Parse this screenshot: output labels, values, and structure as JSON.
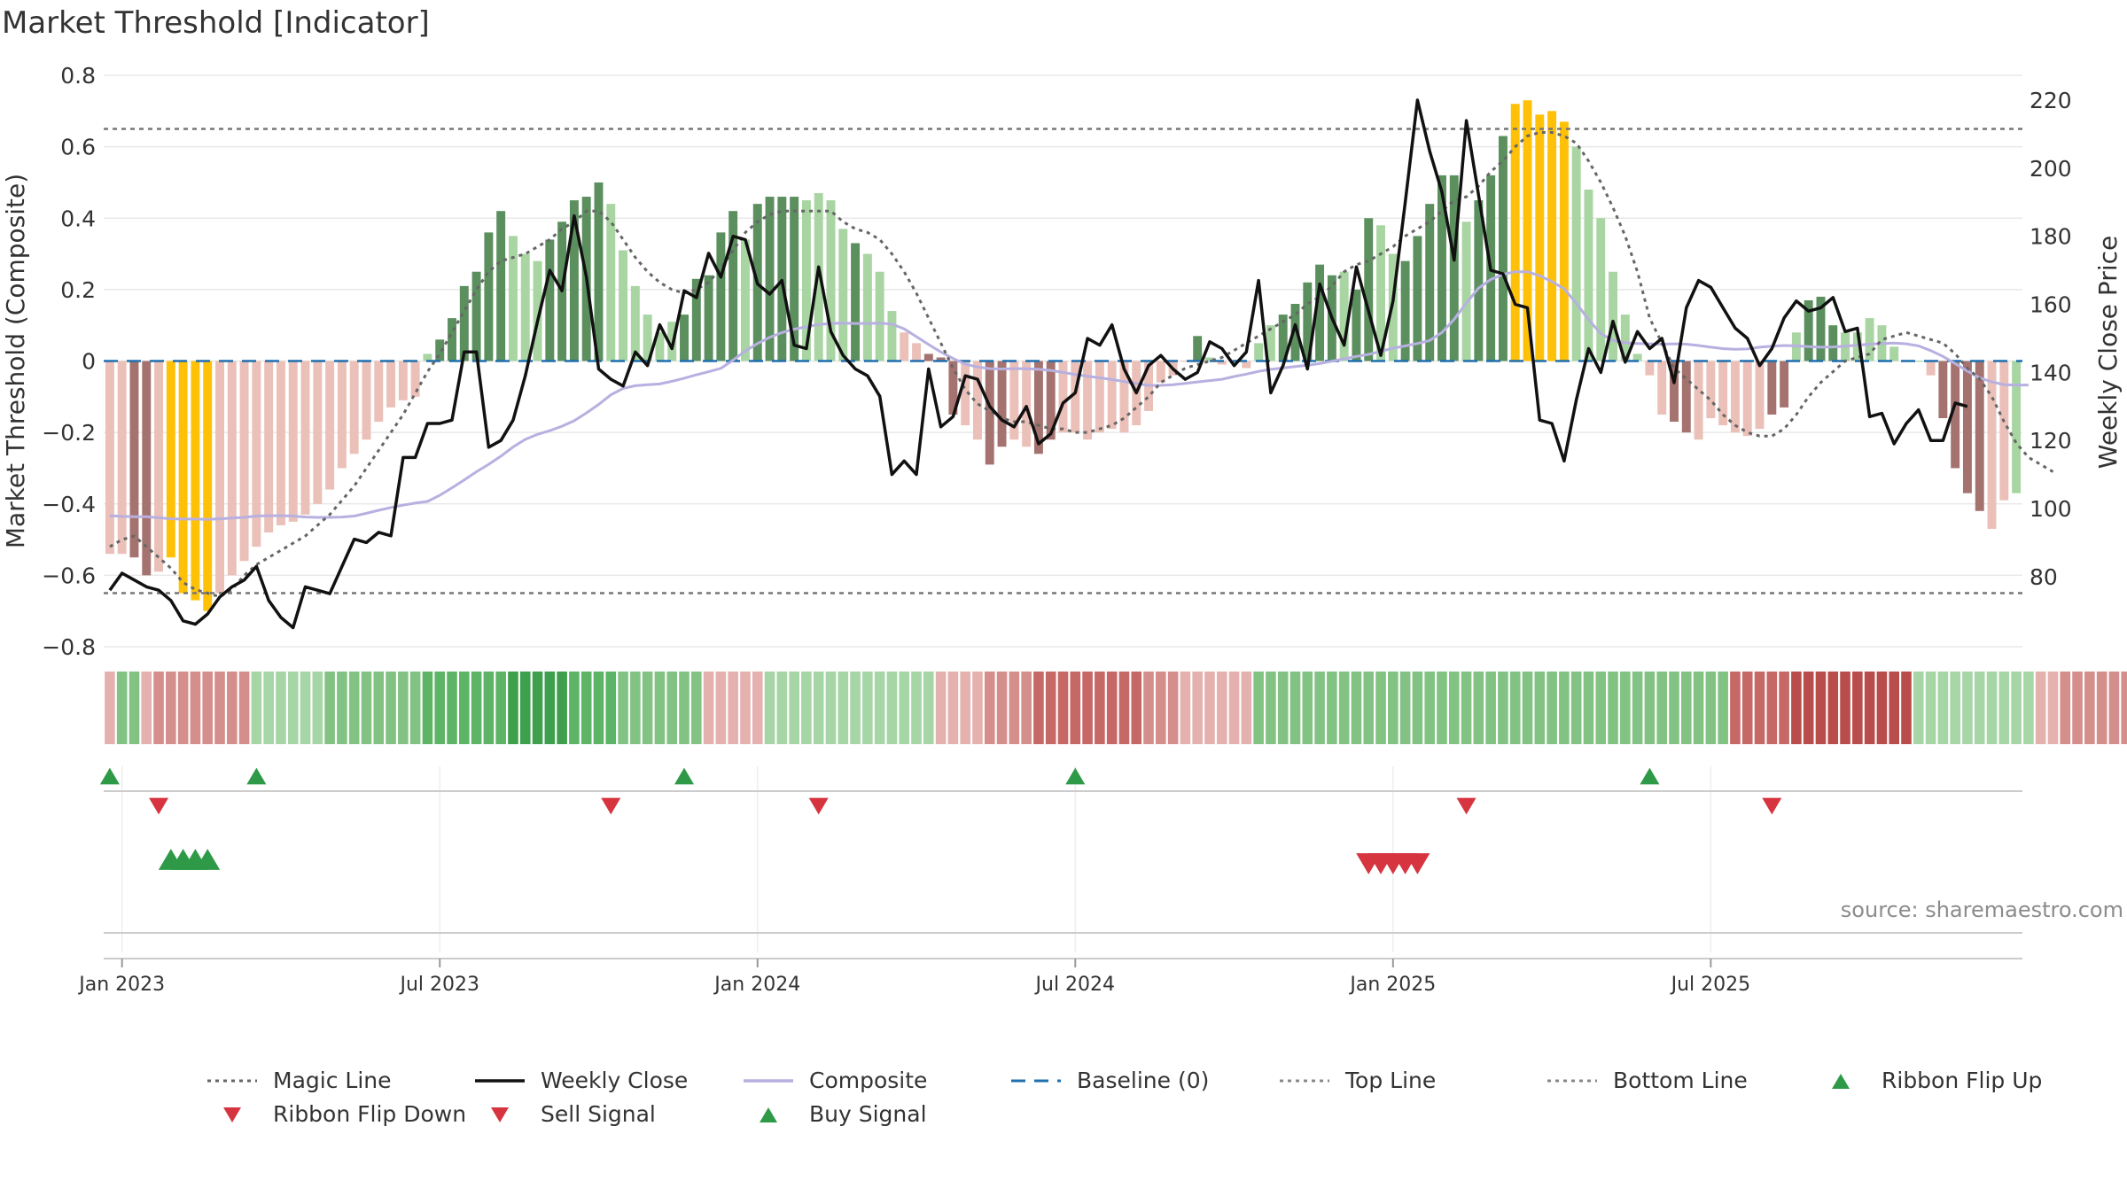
{
  "title": "Market Threshold [Indicator]",
  "source_note": "source: sharemaestro.com",
  "colors": {
    "bar_strong_pos": "#5b8f5e",
    "bar_weak_pos": "#a8d5a2",
    "bar_strong_neg": "#a5736f",
    "bar_weak_neg": "#ebc0b8",
    "bar_extreme": "#ffc107",
    "magic_line": "#666666",
    "weekly_close": "#111111",
    "composite": "#b7b0e0",
    "baseline": "#1f6fae",
    "threshold": "#777777",
    "buy": "#2e9a47",
    "sell": "#d6343f"
  },
  "legend": [
    {
      "label": "Magic Line",
      "kind": "dotted",
      "color": "#666666"
    },
    {
      "label": "Weekly Close",
      "kind": "solid",
      "color": "#111111"
    },
    {
      "label": "Composite",
      "kind": "solid",
      "color": "#b7b0e0"
    },
    {
      "label": "Baseline (0)",
      "kind": "dashed",
      "color": "#1f6fae"
    },
    {
      "label": "Top Line",
      "kind": "dotted",
      "color": "#888888"
    },
    {
      "label": "Bottom Line",
      "kind": "dotted",
      "color": "#888888"
    },
    {
      "label": "Ribbon Flip Up",
      "kind": "tri-up",
      "color": "#2e9a47"
    },
    {
      "label": "Ribbon Flip Down",
      "kind": "tri-down",
      "color": "#d6343f"
    },
    {
      "label": "Sell Signal",
      "kind": "tri-down",
      "color": "#d6343f"
    },
    {
      "label": "Buy Signal",
      "kind": "tri-up",
      "color": "#2e9a47"
    }
  ],
  "chart_data": {
    "type": "bar",
    "ylabel": "Market Threshold (Composite)",
    "y2label": "Weekly Close Price",
    "ylim": [
      -0.8,
      0.8
    ],
    "y2lim": [
      59.4,
      227.3
    ],
    "yticks": [
      "0.8",
      "0.6",
      "0.4",
      "0.2",
      "0",
      "−0.2",
      "−0.4",
      "−0.6",
      "−0.8"
    ],
    "yticks_values": [
      0.8,
      0.6,
      0.4,
      0.2,
      0,
      -0.2,
      -0.4,
      -0.6,
      -0.8
    ],
    "y2ticks": [
      "220",
      "200",
      "180",
      "160",
      "140",
      "120",
      "100",
      "80"
    ],
    "y2ticks_values": [
      220,
      200,
      180,
      160,
      140,
      120,
      100,
      80
    ],
    "xticks": [
      "Jan 2023",
      "Jul 2023",
      "Jan 2024",
      "Jul 2024",
      "Jan 2025",
      "Jul 2025"
    ],
    "xticks_week": [
      1,
      27,
      53,
      79,
      105,
      131
    ],
    "first_week_date": "2022-12-23",
    "top_line": 0.65,
    "bottom_line": -0.65,
    "baseline": 0,
    "composite_bars": [
      -0.54,
      -0.54,
      -0.55,
      -0.6,
      -0.59,
      -0.55,
      -0.65,
      -0.67,
      -0.7,
      -0.65,
      -0.6,
      -0.56,
      -0.52,
      -0.48,
      -0.46,
      -0.45,
      -0.43,
      -0.4,
      -0.36,
      -0.3,
      -0.26,
      -0.22,
      -0.17,
      -0.13,
      -0.11,
      -0.1,
      0.02,
      0.06,
      0.12,
      0.21,
      0.25,
      0.36,
      0.42,
      0.35,
      0.3,
      0.28,
      0.34,
      0.39,
      0.45,
      0.46,
      0.5,
      0.44,
      0.31,
      0.21,
      0.13,
      0.08,
      0.11,
      0.13,
      0.23,
      0.24,
      0.36,
      0.42,
      0.34,
      0.44,
      0.46,
      0.46,
      0.46,
      0.45,
      0.47,
      0.45,
      0.37,
      0.33,
      0.3,
      0.25,
      0.14,
      0.08,
      0.05,
      0.02,
      0.01,
      -0.15,
      -0.18,
      -0.22,
      -0.29,
      -0.24,
      -0.22,
      -0.24,
      -0.26,
      -0.22,
      -0.2,
      -0.2,
      -0.22,
      -0.2,
      -0.19,
      -0.2,
      -0.18,
      -0.14,
      -0.06,
      -0.04,
      0.0,
      0.07,
      0.01,
      -0.01,
      0.0,
      -0.02,
      0.05,
      0.1,
      0.13,
      0.16,
      0.22,
      0.27,
      0.24,
      0.25,
      0.2,
      0.4,
      0.38,
      0.3,
      0.28,
      0.35,
      0.44,
      0.52,
      0.52,
      0.39,
      0.45,
      0.52,
      0.63,
      0.72,
      0.73,
      0.69,
      0.7,
      0.67,
      0.6,
      0.48,
      0.4,
      0.25,
      0.13,
      0.02,
      -0.04,
      -0.15,
      -0.17,
      -0.2,
      -0.22,
      -0.16,
      -0.18,
      -0.2,
      -0.21,
      -0.19,
      -0.15,
      -0.13,
      0.08,
      0.17,
      0.18,
      0.1,
      0.08,
      0.08,
      0.12,
      0.1,
      0.04,
      0.0,
      0.0,
      -0.04,
      -0.16,
      -0.3,
      -0.37,
      -0.42,
      -0.47,
      -0.39,
      -0.37
    ],
    "bar_class": [
      "wn",
      "wn",
      "sn",
      "sn",
      "wn",
      "x",
      "x",
      "x",
      "x",
      "wn",
      "wn",
      "wn",
      "wn",
      "wn",
      "wn",
      "wn",
      "wn",
      "wn",
      "wn",
      "wn",
      "wn",
      "wn",
      "wn",
      "wn",
      "wn",
      "wn",
      "wp",
      "sp",
      "sp",
      "sp",
      "sp",
      "sp",
      "sp",
      "wp",
      "wp",
      "wp",
      "sp",
      "sp",
      "sp",
      "sp",
      "sp",
      "wp",
      "wp",
      "wp",
      "wp",
      "wp",
      "wp",
      "sp",
      "sp",
      "sp",
      "sp",
      "sp",
      "wp",
      "sp",
      "sp",
      "sp",
      "sp",
      "wp",
      "wp",
      "wp",
      "wp",
      "sp",
      "wp",
      "wp",
      "wp",
      "wn",
      "wn",
      "sn",
      "sn",
      "sn",
      "wn",
      "wn",
      "sn",
      "sn",
      "wn",
      "wn",
      "sn",
      "sn",
      "wn",
      "wn",
      "wn",
      "wn",
      "wn",
      "wn",
      "wn",
      "wn",
      "wn",
      "wn",
      "wn",
      "sp",
      "wp",
      "wn",
      "wn",
      "wn",
      "wp",
      "wp",
      "sp",
      "sp",
      "sp",
      "sp",
      "sp",
      "wp",
      "sp",
      "sp",
      "wp",
      "wp",
      "sp",
      "sp",
      "sp",
      "sp",
      "sp",
      "wp",
      "sp",
      "sp",
      "sp",
      "x",
      "x",
      "x",
      "x",
      "x",
      "wp",
      "wp",
      "wp",
      "wp",
      "wp",
      "wp",
      "wn",
      "wn",
      "sn",
      "sn",
      "wn",
      "wn",
      "wn",
      "wn",
      "wn",
      "wn",
      "sn",
      "sn",
      "wp",
      "sp",
      "sp",
      "sp",
      "wp",
      "wp",
      "wp",
      "wp",
      "wp",
      "wp",
      "wp",
      "wn",
      "sn",
      "sn",
      "sn",
      "sn",
      "wn",
      "wn"
    ],
    "magic_line": [
      -0.52,
      -0.5,
      -0.49,
      -0.52,
      -0.55,
      -0.58,
      -0.62,
      -0.64,
      -0.65,
      -0.66,
      -0.64,
      -0.6,
      -0.57,
      -0.55,
      -0.53,
      -0.51,
      -0.49,
      -0.46,
      -0.43,
      -0.39,
      -0.35,
      -0.3,
      -0.25,
      -0.2,
      -0.15,
      -0.09,
      -0.03,
      0.02,
      0.08,
      0.14,
      0.2,
      0.25,
      0.28,
      0.29,
      0.3,
      0.32,
      0.34,
      0.37,
      0.39,
      0.42,
      0.42,
      0.39,
      0.34,
      0.29,
      0.25,
      0.22,
      0.2,
      0.19,
      0.2,
      0.22,
      0.26,
      0.31,
      0.36,
      0.39,
      0.41,
      0.42,
      0.42,
      0.42,
      0.42,
      0.42,
      0.39,
      0.37,
      0.36,
      0.34,
      0.3,
      0.25,
      0.19,
      0.12,
      0.05,
      -0.02,
      -0.08,
      -0.12,
      -0.14,
      -0.16,
      -0.17,
      -0.17,
      -0.18,
      -0.19,
      -0.19,
      -0.2,
      -0.2,
      -0.19,
      -0.18,
      -0.16,
      -0.13,
      -0.1,
      -0.06,
      -0.04,
      -0.02,
      -0.01,
      0.0,
      0.01,
      0.03,
      0.05,
      0.07,
      0.09,
      0.11,
      0.13,
      0.16,
      0.18,
      0.21,
      0.25,
      0.27,
      0.28,
      0.3,
      0.32,
      0.35,
      0.37,
      0.39,
      0.42,
      0.45,
      0.46,
      0.49,
      0.53,
      0.56,
      0.6,
      0.63,
      0.64,
      0.64,
      0.63,
      0.61,
      0.56,
      0.5,
      0.43,
      0.35,
      0.25,
      0.12,
      0.05,
      -0.02,
      -0.05,
      -0.08,
      -0.11,
      -0.15,
      -0.18,
      -0.2,
      -0.21,
      -0.21,
      -0.19,
      -0.15,
      -0.1,
      -0.06,
      -0.03,
      0.0,
      0.01,
      0.02,
      0.06,
      0.07,
      0.08,
      0.07,
      0.06,
      0.05,
      0.02,
      -0.02,
      -0.05,
      -0.1,
      -0.17,
      -0.23,
      -0.27,
      -0.29,
      -0.31
    ],
    "weekly_close": [
      76,
      81,
      79,
      77,
      76,
      73,
      67,
      66,
      69,
      74,
      77,
      79,
      83,
      73,
      68,
      65,
      77,
      76,
      75,
      83,
      91,
      90,
      93,
      92,
      115,
      115,
      125,
      125,
      126,
      146,
      146,
      118,
      120,
      126,
      139,
      155,
      170,
      164,
      186,
      168,
      141,
      138,
      136,
      146,
      142,
      154,
      147,
      164,
      162,
      175,
      168,
      180,
      179,
      166,
      163,
      167,
      148,
      147,
      171,
      152,
      145,
      141,
      139,
      133,
      110,
      114,
      110,
      141,
      124,
      127,
      139,
      138,
      130,
      126,
      124,
      130,
      119,
      122,
      131,
      134,
      150,
      148,
      154,
      141,
      134,
      142,
      145,
      141,
      138,
      140,
      149,
      147,
      142,
      146,
      167,
      134,
      142,
      154,
      141,
      166,
      156,
      148,
      171,
      158,
      145,
      161,
      190,
      220,
      205,
      193,
      173,
      214,
      192,
      170,
      169,
      160,
      159,
      126,
      125,
      114,
      132,
      147,
      140,
      155,
      143,
      152,
      147,
      150,
      137,
      159,
      167,
      165,
      159,
      153,
      150,
      142,
      147,
      156,
      161,
      158,
      159,
      162,
      152,
      153,
      127,
      128,
      119,
      125,
      129,
      120,
      120,
      131,
      130
    ],
    "composite": [
      97.9,
      97.7,
      97.6,
      97.6,
      97.3,
      97.0,
      96.9,
      96.9,
      96.8,
      97.0,
      97.2,
      97.4,
      97.8,
      97.9,
      97.9,
      97.8,
      97.5,
      97.4,
      97.4,
      97.5,
      97.8,
      98.6,
      99.5,
      100.3,
      101.0,
      101.6,
      102.1,
      103.9,
      106.1,
      108.4,
      110.8,
      113.0,
      115.4,
      118.1,
      120.3,
      121.8,
      122.9,
      124.2,
      125.8,
      128.1,
      130.6,
      133.4,
      135.3,
      136.1,
      136.4,
      136.6,
      137.4,
      138.3,
      139.3,
      140.2,
      141.2,
      143.6,
      146.3,
      148.5,
      150.3,
      151.7,
      152.7,
      153.4,
      154.1,
      154.4,
      154.5,
      154.4,
      154.4,
      154.5,
      154.2,
      152.8,
      150.5,
      148.2,
      146.0,
      144.1,
      142.4,
      141.6,
      141.1,
      141.0,
      141.1,
      141.1,
      140.9,
      140.6,
      140.0,
      139.4,
      138.9,
      138.4,
      137.9,
      137.3,
      136.7,
      136.2,
      136.2,
      136.4,
      136.8,
      137.2,
      137.6,
      138.0,
      138.8,
      139.5,
      140.3,
      140.9,
      141.3,
      141.7,
      142.1,
      142.6,
      143.3,
      144.0,
      144.7,
      145.3,
      146.2,
      147.1,
      147.8,
      148.5,
      149.4,
      151.7,
      155.6,
      160.4,
      164.8,
      167.3,
      168.8,
      169.6,
      169.6,
      168.4,
      166.7,
      164.6,
      160.3,
      155.5,
      151.4,
      149.4,
      148.7,
      148.5,
      148.4,
      148.3,
      148.4,
      148.3,
      147.9,
      147.4,
      147.0,
      146.8,
      146.9,
      147.4,
      147.7,
      147.9,
      147.8,
      147.6,
      147.4,
      147.5,
      147.7,
      148.0,
      148.3,
      148.5,
      148.6,
      148.4,
      147.8,
      146.4,
      144.7,
      142.6,
      140.4,
      138.4,
      137.2,
      136.4,
      136.3,
      136.3
    ],
    "ribbon_levels": [
      -1,
      2,
      2,
      -1,
      -2,
      -2,
      -2,
      -2,
      -2,
      -2,
      -2,
      -2,
      1,
      1,
      1,
      1,
      1,
      1,
      2,
      2,
      2,
      2,
      2,
      2,
      2,
      2,
      3,
      3,
      3,
      3,
      3,
      3,
      3,
      4,
      4,
      4,
      4,
      4,
      3,
      3,
      3,
      3,
      2,
      2,
      2,
      2,
      2,
      2,
      2,
      -1,
      -1,
      -1,
      -1,
      -1,
      1,
      1,
      1,
      1,
      1,
      1,
      1,
      1,
      1,
      1,
      1,
      1,
      1,
      1,
      -1,
      -1,
      -1,
      -1,
      -2,
      -2,
      -2,
      -2,
      -3,
      -3,
      -3,
      -3,
      -3,
      -3,
      -3,
      -3,
      -3,
      -2,
      -2,
      -2,
      -1,
      -1,
      -1,
      -1,
      -1,
      -1,
      2,
      2,
      2,
      2,
      2,
      2,
      2,
      2,
      2,
      2,
      2,
      2,
      2,
      2,
      2,
      2,
      2,
      2,
      2,
      2,
      2,
      2,
      2,
      2,
      2,
      2,
      2,
      2,
      2,
      2,
      2,
      2,
      2,
      2,
      2,
      2,
      2,
      2,
      2,
      -3,
      -3,
      -3,
      -3,
      -3,
      -4,
      -4,
      -4,
      -4,
      -4,
      -4,
      -4,
      -4,
      -4,
      -4,
      1,
      1,
      1,
      1,
      1,
      1,
      1,
      1,
      1,
      1,
      -1,
      -1,
      -2,
      -2,
      -2,
      -2,
      -2,
      -2,
      -2,
      -2,
      -2
    ],
    "ribbon_flip_up_weeks": [
      0,
      12,
      47,
      79,
      126
    ],
    "ribbon_flip_down_weeks": [
      4,
      41,
      58,
      111,
      136
    ],
    "buy_signal_weeks": [
      5,
      6,
      7,
      8
    ],
    "sell_signal_weeks": [
      103,
      104,
      105,
      106,
      107
    ]
  }
}
